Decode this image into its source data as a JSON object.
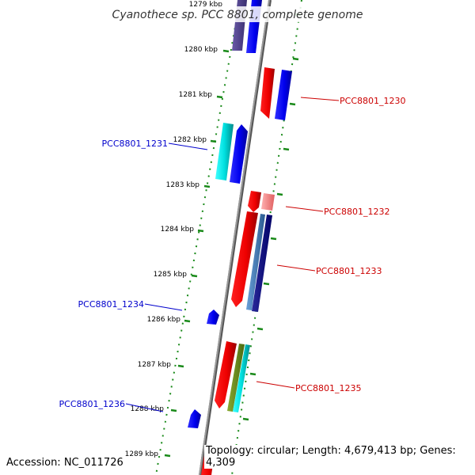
{
  "title": "Cyanothece sp. PCC 8801, complete genome",
  "ticks": [
    {
      "label": "1279 kbp"
    },
    {
      "label": "1280 kbp"
    },
    {
      "label": "1281 kbp"
    },
    {
      "label": "1282 kbp"
    },
    {
      "label": "1283 kbp"
    },
    {
      "label": "1284 kbp"
    },
    {
      "label": "1285 kbp"
    },
    {
      "label": "1286 kbp"
    },
    {
      "label": "1287 kbp"
    },
    {
      "label": "1288 kbp"
    },
    {
      "label": "1289 kbp"
    }
  ],
  "gene_labels": [
    {
      "name": "PCC8801_1230",
      "strand": "reverse"
    },
    {
      "name": "PCC8801_1231",
      "strand": "forward"
    },
    {
      "name": "PCC8801_1232",
      "strand": "reverse"
    },
    {
      "name": "PCC8801_1233",
      "strand": "reverse"
    },
    {
      "name": "PCC8801_1234",
      "strand": "forward"
    },
    {
      "name": "PCC8801_1235",
      "strand": "reverse"
    },
    {
      "name": "PCC8801_1236",
      "strand": "forward"
    }
  ],
  "colors": {
    "forward_label": "#0000cc",
    "reverse_label": "#cc0000",
    "backbone": "#888888",
    "ticks": "#1a8a1a"
  },
  "footer": {
    "accession": "Accession: NC_011726",
    "summary": "Topology: circular; Length: 4,679,413 bp; Genes: 4,309"
  }
}
